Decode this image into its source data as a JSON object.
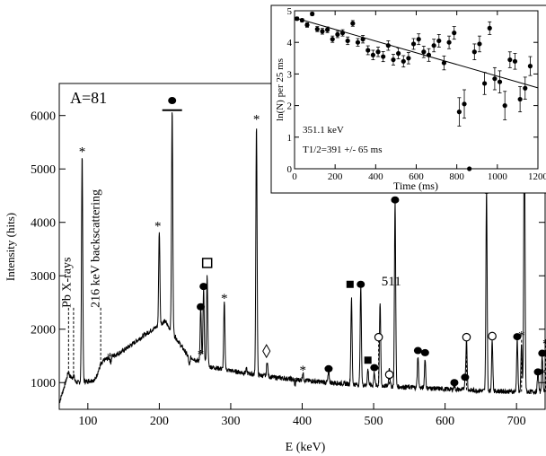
{
  "chart_data": [
    {
      "type": "line",
      "title": "",
      "panel_label": "A=81",
      "xlabel": "E (keV)",
      "ylabel": "Intensity (hits)",
      "xlim": [
        60,
        740
      ],
      "ylim": [
        500,
        6600
      ],
      "x_ticks": [
        100,
        200,
        300,
        400,
        500,
        600,
        700
      ],
      "y_ticks": [
        1000,
        2000,
        3000,
        4000,
        5000,
        6000
      ],
      "grid": false,
      "series": [
        {
          "name": "",
          "peaks": [
            {
              "x": 73,
              "y": 1200
            },
            {
              "x": 80,
              "y": 1150
            },
            {
              "x": 92,
              "y": 5280
            },
            {
              "x": 120,
              "y": 1350
            },
            {
              "x": 132,
              "y": 1380
            },
            {
              "x": 200,
              "y": 3850
            },
            {
              "x": 218,
              "y": 6100
            },
            {
              "x": 242,
              "y": 1300
            },
            {
              "x": 258,
              "y": 2400
            },
            {
              "x": 262,
              "y": 2750
            },
            {
              "x": 267,
              "y": 3000
            },
            {
              "x": 291,
              "y": 2500
            },
            {
              "x": 322,
              "y": 1250
            },
            {
              "x": 336,
              "y": 5850
            },
            {
              "x": 351,
              "y": 1400
            },
            {
              "x": 390,
              "y": 950
            },
            {
              "x": 401,
              "y": 1180
            },
            {
              "x": 437,
              "y": 1200
            },
            {
              "x": 469,
              "y": 2580
            },
            {
              "x": 482,
              "y": 2800
            },
            {
              "x": 492,
              "y": 1250
            },
            {
              "x": 501,
              "y": 1200
            },
            {
              "x": 509,
              "y": 2500
            },
            {
              "x": 522,
              "y": 1300
            },
            {
              "x": 530,
              "y": 4400
            },
            {
              "x": 562,
              "y": 1500
            },
            {
              "x": 572,
              "y": 1450
            },
            {
              "x": 613,
              "y": 950
            },
            {
              "x": 628,
              "y": 1050
            },
            {
              "x": 630,
              "y": 1800
            },
            {
              "x": 658,
              "y": 4600
            },
            {
              "x": 666,
              "y": 1800
            },
            {
              "x": 701,
              "y": 1800
            },
            {
              "x": 707,
              "y": 1700
            },
            {
              "x": 711,
              "y": 6100
            },
            {
              "x": 730,
              "y": 1200
            },
            {
              "x": 736,
              "y": 1500
            }
          ],
          "baseline": [
            {
              "x": 60,
              "y": 620
            },
            {
              "x": 72,
              "y": 1150
            },
            {
              "x": 85,
              "y": 1000
            },
            {
              "x": 110,
              "y": 1050
            },
            {
              "x": 120,
              "y": 1400
            },
            {
              "x": 150,
              "y": 1600
            },
            {
              "x": 180,
              "y": 1900
            },
            {
              "x": 208,
              "y": 2150
            },
            {
              "x": 240,
              "y": 1500
            },
            {
              "x": 270,
              "y": 1300
            },
            {
              "x": 310,
              "y": 1200
            },
            {
              "x": 360,
              "y": 1100
            },
            {
              "x": 420,
              "y": 1020
            },
            {
              "x": 480,
              "y": 960
            },
            {
              "x": 540,
              "y": 920
            },
            {
              "x": 600,
              "y": 880
            },
            {
              "x": 650,
              "y": 850
            },
            {
              "x": 700,
              "y": 830
            },
            {
              "x": 740,
              "y": 830
            }
          ]
        }
      ],
      "annotations": [
        {
          "text": "Pb X-rays",
          "x": 76,
          "y": 2400,
          "rotate": true
        },
        {
          "text": "216 keV backscattering",
          "x": 116,
          "y": 2400,
          "rotate": true
        },
        {
          "text": "511",
          "x": 511,
          "y": 2820
        }
      ],
      "markers": [
        {
          "symbol": "asterisk",
          "x": 92,
          "y": 5350
        },
        {
          "symbol": "asterisk",
          "x": 131,
          "y": 1500
        },
        {
          "symbol": "asterisk",
          "x": 198,
          "y": 3950
        },
        {
          "symbol": "asterisk",
          "x": 258,
          "y": 1550
        },
        {
          "symbol": "asterisk",
          "x": 291,
          "y": 2600
        },
        {
          "symbol": "asterisk",
          "x": 336,
          "y": 5950
        },
        {
          "symbol": "asterisk",
          "x": 390,
          "y": 1030
        },
        {
          "symbol": "asterisk",
          "x": 401,
          "y": 1260
        },
        {
          "symbol": "asterisk",
          "x": 707,
          "y": 1900
        },
        {
          "symbol": "asterisk",
          "x": 736,
          "y": 1200
        },
        {
          "symbol": "asterisk",
          "x": 741,
          "y": 1750
        },
        {
          "symbol": "circle",
          "x": 218,
          "y": 6280
        },
        {
          "symbol": "circle",
          "x": 258,
          "y": 2420
        },
        {
          "symbol": "circle",
          "x": 262,
          "y": 2800
        },
        {
          "symbol": "circle",
          "x": 437,
          "y": 1260
        },
        {
          "symbol": "circle",
          "x": 482,
          "y": 2840
        },
        {
          "symbol": "circle",
          "x": 501,
          "y": 1280
        },
        {
          "symbol": "circle",
          "x": 530,
          "y": 4420
        },
        {
          "symbol": "circle",
          "x": 562,
          "y": 1600
        },
        {
          "symbol": "circle",
          "x": 572,
          "y": 1560
        },
        {
          "symbol": "circle",
          "x": 613,
          "y": 1000
        },
        {
          "symbol": "circle",
          "x": 628,
          "y": 1100
        },
        {
          "symbol": "circle",
          "x": 658,
          "y": 4600
        },
        {
          "symbol": "circle",
          "x": 701,
          "y": 1860
        },
        {
          "symbol": "circle",
          "x": 711,
          "y": 6280
        },
        {
          "symbol": "circle",
          "x": 730,
          "y": 1200
        },
        {
          "symbol": "circle",
          "x": 736,
          "y": 1550
        },
        {
          "symbol": "open-circle",
          "x": 507,
          "y": 1850
        },
        {
          "symbol": "open-circle",
          "x": 522,
          "y": 1150
        },
        {
          "symbol": "open-circle",
          "x": 630,
          "y": 1850
        },
        {
          "symbol": "open-circle",
          "x": 666,
          "y": 1870
        },
        {
          "symbol": "square",
          "x": 467,
          "y": 2840
        },
        {
          "symbol": "square",
          "x": 492,
          "y": 1420
        },
        {
          "symbol": "open-square",
          "x": 267,
          "y": 3240
        },
        {
          "symbol": "diamond",
          "x": 350,
          "y": 1590
        }
      ],
      "capped_peaks": [
        {
          "x": 218,
          "y": 6100
        },
        {
          "x": 711,
          "y": 6100
        }
      ],
      "dashed_guides": [
        {
          "x": 73,
          "y": 2400
        },
        {
          "x": 80,
          "y": 2400
        },
        {
          "x": 118,
          "y": 2400
        },
        {
          "x": 507,
          "y": 1800
        },
        {
          "x": 522,
          "y": 1100
        },
        {
          "x": 630,
          "y": 1750
        },
        {
          "x": 707,
          "y": 1800
        },
        {
          "x": 741,
          "y": 1700
        }
      ]
    },
    {
      "type": "scatter",
      "title": "",
      "xlabel": "Time (ms)",
      "ylabel": "ln(N) per 25 ms",
      "xlim": [
        0,
        1200
      ],
      "ylim": [
        0,
        5
      ],
      "x_ticks": [
        0,
        200,
        400,
        600,
        800,
        1000,
        1200
      ],
      "y_ticks": [
        0,
        1,
        2,
        3,
        4,
        5
      ],
      "annotations": [
        "351.1 keV",
        "T1/2=391 +/- 65 ms"
      ],
      "fit_line": {
        "x": [
          0,
          1200
        ],
        "y": [
          4.78,
          2.56
        ]
      },
      "points": [
        {
          "x": 12,
          "y": 4.75,
          "err": 0.05
        },
        {
          "x": 37,
          "y": 4.7,
          "err": 0.05
        },
        {
          "x": 62,
          "y": 4.55,
          "err": 0.07
        },
        {
          "x": 87,
          "y": 4.9,
          "err": 0.05
        },
        {
          "x": 112,
          "y": 4.42,
          "err": 0.08
        },
        {
          "x": 137,
          "y": 4.35,
          "err": 0.09
        },
        {
          "x": 162,
          "y": 4.4,
          "err": 0.09
        },
        {
          "x": 187,
          "y": 4.1,
          "err": 0.1
        },
        {
          "x": 212,
          "y": 4.25,
          "err": 0.1
        },
        {
          "x": 237,
          "y": 4.3,
          "err": 0.1
        },
        {
          "x": 262,
          "y": 4.05,
          "err": 0.12
        },
        {
          "x": 287,
          "y": 4.6,
          "err": 0.09
        },
        {
          "x": 312,
          "y": 4.0,
          "err": 0.12
        },
        {
          "x": 337,
          "y": 4.1,
          "err": 0.12
        },
        {
          "x": 362,
          "y": 3.75,
          "err": 0.14
        },
        {
          "x": 387,
          "y": 3.6,
          "err": 0.15
        },
        {
          "x": 412,
          "y": 3.7,
          "err": 0.15
        },
        {
          "x": 437,
          "y": 3.55,
          "err": 0.16
        },
        {
          "x": 462,
          "y": 3.9,
          "err": 0.15
        },
        {
          "x": 487,
          "y": 3.45,
          "err": 0.17
        },
        {
          "x": 512,
          "y": 3.65,
          "err": 0.17
        },
        {
          "x": 537,
          "y": 3.4,
          "err": 0.18
        },
        {
          "x": 562,
          "y": 3.5,
          "err": 0.18
        },
        {
          "x": 587,
          "y": 3.95,
          "err": 0.17
        },
        {
          "x": 612,
          "y": 4.1,
          "err": 0.17
        },
        {
          "x": 637,
          "y": 3.7,
          "err": 0.18
        },
        {
          "x": 662,
          "y": 3.6,
          "err": 0.2
        },
        {
          "x": 687,
          "y": 3.9,
          "err": 0.2
        },
        {
          "x": 712,
          "y": 4.05,
          "err": 0.2
        },
        {
          "x": 737,
          "y": 3.35,
          "err": 0.22
        },
        {
          "x": 762,
          "y": 4.0,
          "err": 0.2
        },
        {
          "x": 787,
          "y": 4.3,
          "err": 0.2
        },
        {
          "x": 812,
          "y": 1.8,
          "err": 0.45
        },
        {
          "x": 837,
          "y": 2.05,
          "err": 0.45
        },
        {
          "x": 862,
          "y": 0.0,
          "err": 0.0
        },
        {
          "x": 887,
          "y": 3.7,
          "err": 0.25
        },
        {
          "x": 912,
          "y": 3.95,
          "err": 0.25
        },
        {
          "x": 937,
          "y": 2.7,
          "err": 0.35
        },
        {
          "x": 962,
          "y": 4.45,
          "err": 0.2
        },
        {
          "x": 987,
          "y": 2.85,
          "err": 0.35
        },
        {
          "x": 1012,
          "y": 2.75,
          "err": 0.35
        },
        {
          "x": 1037,
          "y": 2.0,
          "err": 0.45
        },
        {
          "x": 1062,
          "y": 3.45,
          "err": 0.25
        },
        {
          "x": 1087,
          "y": 3.4,
          "err": 0.25
        },
        {
          "x": 1112,
          "y": 2.2,
          "err": 0.4
        },
        {
          "x": 1137,
          "y": 2.55,
          "err": 0.35
        },
        {
          "x": 1162,
          "y": 3.25,
          "err": 0.3
        }
      ]
    }
  ]
}
